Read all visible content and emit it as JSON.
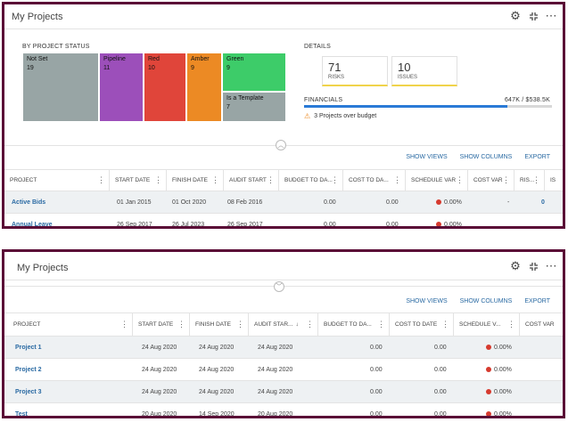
{
  "panel1": {
    "title": "My Projects",
    "status_heading": "BY PROJECT STATUS",
    "treemap": [
      {
        "name": "Not Set",
        "count": "19",
        "color": "#98a5a5"
      },
      {
        "name": "Pipeline",
        "count": "11",
        "color": "#9c4fba"
      },
      {
        "name": "Red",
        "count": "10",
        "color": "#e0453a"
      },
      {
        "name": "Amber",
        "count": "9",
        "color": "#ec8a24"
      },
      {
        "name": "Green",
        "count": "9",
        "color": "#3dcc69"
      },
      {
        "name": "Is a Template",
        "count": "7",
        "color": "#98a5a5"
      }
    ],
    "details_heading": "DETAILS",
    "risks_value": "71",
    "risks_label": "RISKS",
    "issues_value": "10",
    "issues_label": "ISSUES",
    "financials_label": "FINANCIALS",
    "financials_value": "647K / $538.5K",
    "financials_progress": 0.82,
    "warning": "3 Projects over budget",
    "actions": {
      "show_views": "SHOW VIEWS",
      "show_columns": "SHOW COLUMNS",
      "export": "EXPORT"
    },
    "columns": [
      "PROJECT",
      "START DATE",
      "FINISH DATE",
      "AUDIT START",
      "BUDGET TO DA...",
      "COST TO DA...",
      "SCHEDULE VAR",
      "COST VAR",
      "RIS...",
      "IS"
    ],
    "rows": [
      {
        "project": "Active Bids",
        "start": "01 Jan 2015",
        "finish": "01 Oct 2020",
        "audit": "08 Feb 2016",
        "budget": "0.00",
        "cost": "0.00",
        "schedule": "0.00%",
        "costvar": "-",
        "risks": "0"
      },
      {
        "project": "Annual Leave",
        "start": "26 Sep 2017",
        "finish": "26 Jul 2023",
        "audit": "26 Sep 2017",
        "budget": "0.00",
        "cost": "0.00",
        "schedule": "0.00%",
        "costvar": "",
        "risks": ""
      }
    ]
  },
  "panel2": {
    "title": "My Projects",
    "actions": {
      "show_views": "SHOW VIEWS",
      "show_columns": "SHOW COLUMNS",
      "export": "EXPORT"
    },
    "columns": [
      "PROJECT",
      "START DATE",
      "FINISH DATE",
      "AUDIT STAR...",
      "BUDGET TO DA...",
      "COST TO DATE",
      "SCHEDULE V...",
      "COST VAR"
    ],
    "rows": [
      {
        "project": "Project 1",
        "start": "24 Aug 2020",
        "finish": "24 Aug 2020",
        "audit": "24 Aug 2020",
        "budget": "0.00",
        "cost": "0.00",
        "schedule": "0.00%"
      },
      {
        "project": "Project 2",
        "start": "24 Aug 2020",
        "finish": "24 Aug 2020",
        "audit": "24 Aug 2020",
        "budget": "0.00",
        "cost": "0.00",
        "schedule": "0.00%"
      },
      {
        "project": "Project 3",
        "start": "24 Aug 2020",
        "finish": "24 Aug 2020",
        "audit": "24 Aug 2020",
        "budget": "0.00",
        "cost": "0.00",
        "schedule": "0.00%"
      },
      {
        "project": "Test",
        "start": "20 Aug 2020",
        "finish": "14 Sep 2020",
        "audit": "20 Aug 2020",
        "budget": "0.00",
        "cost": "0.00",
        "schedule": "0.00%"
      }
    ]
  }
}
